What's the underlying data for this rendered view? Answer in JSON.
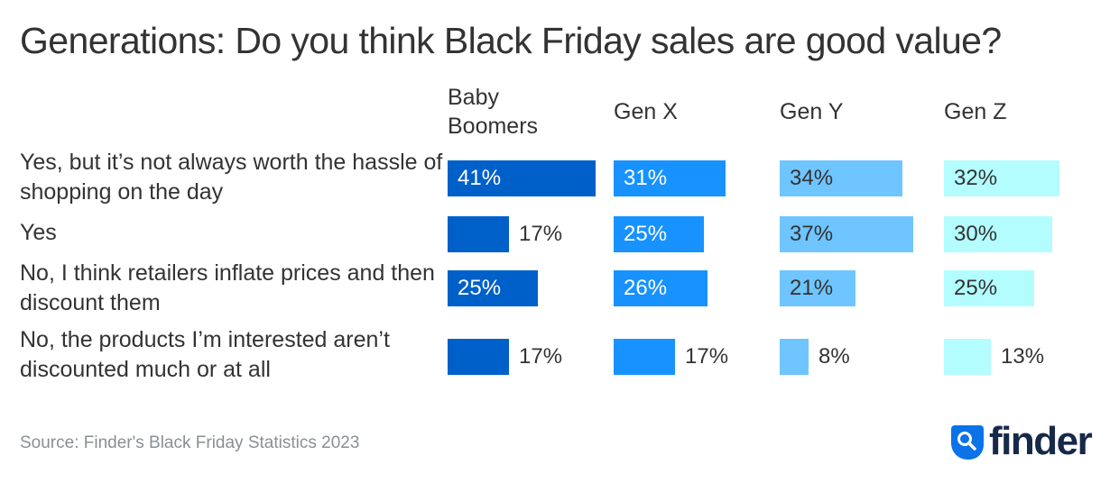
{
  "chart_data": {
    "type": "bar",
    "orientation": "horizontal",
    "layout": "small-multiples",
    "title": "Generations: Do you think Black Friday sales are good value?",
    "categories": [
      "Yes, but it’s not always worth the hassle of shopping on the day",
      "Yes",
      "No, I think retailers inflate prices and then discount them",
      "No, the products I’m interested aren’t discounted much or at all"
    ],
    "series": [
      {
        "name": "Baby Boomers",
        "values": [
          41,
          17,
          25,
          17
        ],
        "color": "#0060c9",
        "label_color": "#ffffff"
      },
      {
        "name": "Gen X",
        "values": [
          31,
          25,
          26,
          17
        ],
        "color": "#1792ff",
        "label_color": "#ffffff"
      },
      {
        "name": "Gen Y",
        "values": [
          34,
          37,
          21,
          8
        ],
        "color": "#6fc5ff",
        "label_color": "#333333"
      },
      {
        "name": "Gen Z",
        "values": [
          32,
          30,
          25,
          13
        ],
        "color": "#b3fdff",
        "label_color": "#333333"
      }
    ],
    "value_suffix": "%",
    "xlabel": "",
    "ylabel": "",
    "xlim": [
      0,
      45
    ],
    "grid": false,
    "legend": "column-headers-top"
  },
  "footer": {
    "source": "Source: Finder's Black Friday Statistics 2023",
    "logo_text": "finder",
    "logo_icon": "search-icon",
    "logo_color": "#0b72e7",
    "logo_text_color": "#17294a"
  }
}
